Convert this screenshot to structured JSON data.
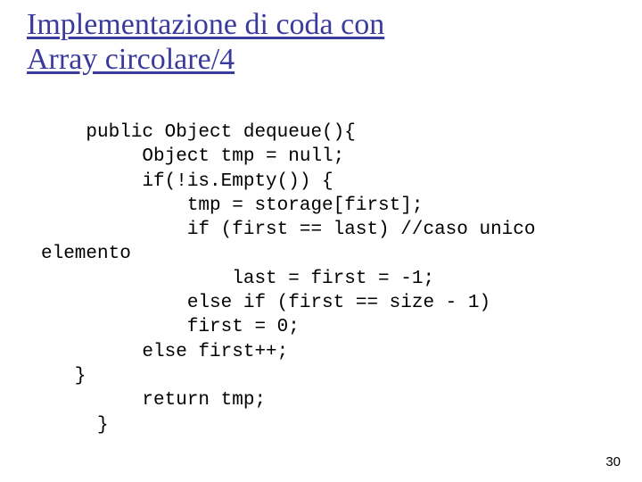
{
  "slide": {
    "title_line1": "Implementazione di coda con",
    "title_line2": "Array circolare/4",
    "code": "    public Object dequeue(){\n         Object tmp = null;\n         if(!is.Empty()) {\n             tmp = storage[first];\n             if (first == last) //caso unico\nelemento\n                 last = first = -1;\n             else if (first == size - 1)\n             first = 0;\n         else first++;\n   }\n         return tmp;\n     }",
    "page_number": "30"
  },
  "style": {
    "title_color": "#3b3b9e",
    "title_font": "Comic Sans MS",
    "title_fontsize_pt": 26,
    "code_font": "Courier New",
    "code_fontsize_pt": 16,
    "code_color": "#000000",
    "background_color": "#ffffff",
    "pagenum_color": "#000000",
    "pagenum_fontsize_pt": 11
  }
}
